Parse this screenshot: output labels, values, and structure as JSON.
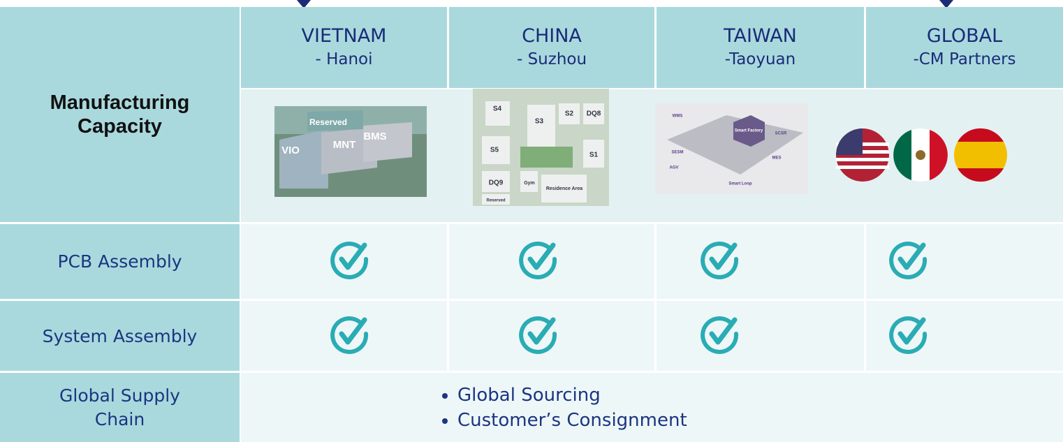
{
  "header": {
    "columns": [
      {
        "country": "VIETNAM",
        "city": "- Hanoi"
      },
      {
        "country": "CHINA",
        "city": "- Suzhou"
      },
      {
        "country": "TAIWAN",
        "city": "-Taoyuan"
      },
      {
        "country": "GLOBAL",
        "city": "-CM Partners"
      }
    ]
  },
  "section": "Manufacturing Capacity",
  "images": [
    {
      "labels": [
        "Reserved",
        "VIO",
        "MNT",
        "BMS"
      ]
    },
    {
      "labels": [
        "S4",
        "S3",
        "S2",
        "DQ8",
        "S5",
        "S1",
        "DQ9",
        "Reserved",
        "Gym",
        "Residence Area"
      ]
    },
    {
      "labels": [
        "WMS",
        "Smart Factory",
        "SCSR",
        "SESM",
        "MES",
        "AGV",
        "Smart Loop"
      ]
    }
  ],
  "rows": [
    "PCB Assembly",
    "System Assembly",
    "Global Supply Chain"
  ],
  "supply_chain": [
    "Global Sourcing",
    "Customer’s Consignment"
  ]
}
